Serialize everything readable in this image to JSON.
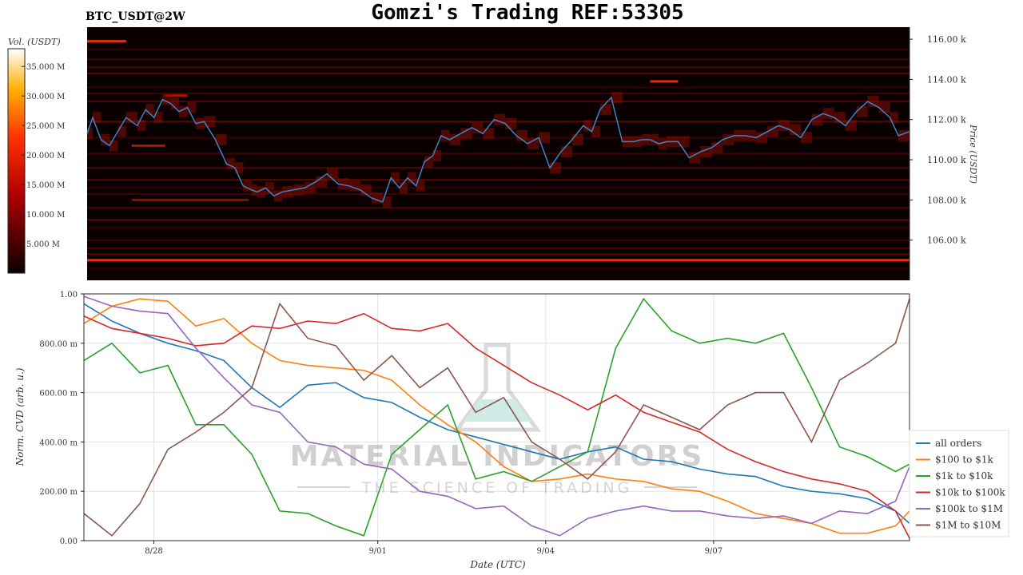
{
  "header": {
    "symbol": "BTC_USDT@2W",
    "title": "Gomzi's Trading REF:53305"
  },
  "watermark": {
    "brand": "MATERIAL INDICATORS",
    "tagline": "THE SCIENCE OF TRADING"
  },
  "colors": {
    "price_line": "#3a86c8",
    "heatmap_bg": "#0a0000",
    "all_orders": "#1f77b4",
    "s100_1k": "#ff7f0e",
    "s1k_10k": "#2ca02c",
    "s10k_100k": "#d62728",
    "s100k_1m": "#9467bd",
    "s1m_10m": "#8c564b"
  },
  "chart_data": [
    {
      "type": "heatmap",
      "title": "BTC_USDT@2W",
      "colorbar": {
        "label": "Vol. (USDT)",
        "ticks": [
          "35.000 M",
          "30.000 M",
          "25.000 M",
          "20.000 M",
          "15.000 M",
          "10.000 M",
          "5.000 M"
        ],
        "tick_values": [
          35,
          30,
          25,
          20,
          15,
          10,
          5
        ],
        "range": [
          0,
          38
        ],
        "units": "M USDT",
        "colormap": "hot"
      },
      "ylabel": "Price (USDT)",
      "ylim": [
        104.0,
        116.6
      ],
      "y_units": "k USDT",
      "yticks": [
        "116.00 k",
        "114.00 k",
        "112.00 k",
        "110.00 k",
        "108.00 k",
        "106.00 k"
      ],
      "ytick_values": [
        116,
        114,
        112,
        110,
        108,
        106
      ],
      "xlim": [
        0,
        14.75
      ],
      "x_units": "days since 8/27 00:00 UTC",
      "strong_levels": [
        {
          "price": 105.0,
          "x_start": 0,
          "x_end": 14.75,
          "intensity": 0.9
        },
        {
          "price": 115.9,
          "x_start": 0,
          "x_end": 0.7,
          "intensity": 0.85
        },
        {
          "price": 113.9,
          "x_start": 10.1,
          "x_end": 10.6,
          "intensity": 0.85
        },
        {
          "price": 110.7,
          "x_start": 0.8,
          "x_end": 1.4,
          "intensity": 0.75
        },
        {
          "price": 113.2,
          "x_start": 1.4,
          "x_end": 1.8,
          "intensity": 0.7
        },
        {
          "price": 108.0,
          "x_start": 0.8,
          "x_end": 2.9,
          "intensity": 0.6
        }
      ],
      "band_levels": [
        115.5,
        115.0,
        114.6,
        114.3,
        113.6,
        113.3,
        112.9,
        111.9,
        111.1,
        110.3,
        109.6,
        109.0,
        108.6,
        108.3,
        107.6,
        107.0,
        106.6,
        106.0,
        105.6,
        105.3,
        104.6
      ],
      "price_series": {
        "name": "BTC price",
        "x": [
          0,
          0.1,
          0.25,
          0.4,
          0.55,
          0.7,
          0.9,
          1.05,
          1.2,
          1.35,
          1.5,
          1.65,
          1.8,
          1.95,
          2.1,
          2.3,
          2.5,
          2.65,
          2.8,
          2.95,
          3.05,
          3.2,
          3.35,
          3.5,
          3.7,
          3.9,
          4.1,
          4.3,
          4.5,
          4.7,
          4.9,
          5.1,
          5.3,
          5.45,
          5.6,
          5.75,
          5.9,
          6.05,
          6.2,
          6.35,
          6.5,
          6.7,
          6.9,
          7.1,
          7.3,
          7.5,
          7.7,
          7.9,
          8.1,
          8.3,
          8.5,
          8.7,
          8.9,
          9.05,
          9.2,
          9.4,
          9.6,
          9.8,
          9.95,
          10.1,
          10.25,
          10.4,
          10.6,
          10.8,
          11.0,
          11.2,
          11.4,
          11.6,
          11.8,
          12.0,
          12.2,
          12.4,
          12.6,
          12.8,
          13.0,
          13.2,
          13.4,
          13.6,
          13.8,
          14.0,
          14.2,
          14.4,
          14.55,
          14.75
        ],
        "y": [
          111.3,
          112.1,
          111.0,
          110.7,
          111.4,
          112.1,
          111.7,
          112.5,
          112.1,
          113.0,
          112.8,
          112.4,
          112.6,
          111.8,
          111.9,
          111.0,
          109.8,
          109.6,
          108.7,
          108.5,
          108.4,
          108.6,
          108.2,
          108.4,
          108.5,
          108.6,
          108.9,
          109.3,
          108.8,
          108.7,
          108.5,
          108.1,
          107.9,
          109.1,
          108.6,
          109.1,
          108.7,
          109.9,
          110.2,
          111.2,
          111.0,
          111.3,
          111.6,
          111.3,
          112.0,
          111.8,
          111.2,
          110.8,
          111.1,
          109.6,
          110.4,
          111.0,
          111.7,
          111.4,
          112.5,
          113.1,
          110.9,
          110.9,
          111.0,
          111.0,
          110.8,
          110.9,
          110.9,
          110.1,
          110.4,
          110.6,
          111.0,
          111.2,
          111.2,
          111.1,
          111.4,
          111.7,
          111.5,
          111.1,
          112.0,
          112.3,
          112.1,
          111.7,
          112.4,
          112.9,
          112.6,
          112.1,
          111.2,
          111.4
        ]
      }
    },
    {
      "type": "line",
      "title": "",
      "xlabel": "Date (UTC)",
      "ylabel": "Norm. CVD (arb. u.)",
      "ylim": [
        0,
        1
      ],
      "yticks": [
        "1.00",
        "800.00 m",
        "600.00 m",
        "400.00 m",
        "200.00 m",
        "0.00"
      ],
      "ytick_values": [
        1.0,
        0.8,
        0.6,
        0.4,
        0.2,
        0.0
      ],
      "xlim": [
        0,
        14.75
      ],
      "x_units": "days since 8/27 00:00 UTC",
      "xticks": [
        "8/28",
        "9/01",
        "9/04",
        "9/07"
      ],
      "xtick_values": [
        1.25,
        5.25,
        8.25,
        11.25
      ],
      "grid": true,
      "legend_position": "bottom-right",
      "x": [
        0,
        0.5,
        1,
        1.5,
        2,
        2.5,
        3,
        3.5,
        4,
        4.5,
        5,
        5.5,
        6,
        6.5,
        7,
        7.5,
        8,
        8.5,
        9,
        9.5,
        10,
        10.5,
        11,
        11.5,
        12,
        12.5,
        13,
        13.5,
        14,
        14.5,
        14.75
      ],
      "series": [
        {
          "name": "all orders",
          "color": "#1f77b4",
          "values": [
            0.96,
            0.89,
            0.84,
            0.8,
            0.77,
            0.73,
            0.62,
            0.54,
            0.63,
            0.64,
            0.58,
            0.56,
            0.5,
            0.45,
            0.42,
            0.39,
            0.36,
            0.33,
            0.36,
            0.38,
            0.33,
            0.32,
            0.29,
            0.27,
            0.26,
            0.22,
            0.2,
            0.19,
            0.17,
            0.12,
            0.07
          ]
        },
        {
          "name": "$100 to $1k",
          "color": "#ff7f0e",
          "values": [
            0.88,
            0.95,
            0.98,
            0.97,
            0.87,
            0.9,
            0.8,
            0.73,
            0.71,
            0.7,
            0.69,
            0.65,
            0.55,
            0.47,
            0.4,
            0.3,
            0.24,
            0.25,
            0.27,
            0.25,
            0.24,
            0.21,
            0.2,
            0.16,
            0.11,
            0.09,
            0.07,
            0.03,
            0.03,
            0.06,
            0.12
          ]
        },
        {
          "name": "$1k to $10k",
          "color": "#2ca02c",
          "values": [
            0.73,
            0.8,
            0.68,
            0.71,
            0.47,
            0.47,
            0.35,
            0.12,
            0.11,
            0.06,
            0.02,
            0.35,
            0.45,
            0.55,
            0.25,
            0.28,
            0.24,
            0.3,
            0.36,
            0.78,
            0.98,
            0.85,
            0.8,
            0.82,
            0.8,
            0.84,
            0.62,
            0.38,
            0.34,
            0.28,
            0.31
          ]
        },
        {
          "name": "$10k to $100k",
          "color": "#d62728",
          "values": [
            0.91,
            0.86,
            0.84,
            0.82,
            0.79,
            0.8,
            0.87,
            0.86,
            0.89,
            0.88,
            0.92,
            0.86,
            0.85,
            0.88,
            0.78,
            0.71,
            0.64,
            0.59,
            0.53,
            0.59,
            0.52,
            0.48,
            0.44,
            0.37,
            0.32,
            0.28,
            0.25,
            0.23,
            0.2,
            0.12,
            0.01
          ]
        },
        {
          "name": "$100k to $1M",
          "color": "#9467bd",
          "values": [
            0.99,
            0.95,
            0.93,
            0.92,
            0.78,
            0.66,
            0.55,
            0.52,
            0.4,
            0.38,
            0.31,
            0.29,
            0.2,
            0.18,
            0.13,
            0.14,
            0.06,
            0.02,
            0.09,
            0.12,
            0.14,
            0.12,
            0.12,
            0.1,
            0.09,
            0.1,
            0.07,
            0.12,
            0.11,
            0.16,
            0.3
          ]
        },
        {
          "name": "$1M to $10M",
          "color": "#8c564b",
          "values": [
            0.11,
            0.02,
            0.15,
            0.37,
            0.44,
            0.52,
            0.62,
            0.96,
            0.82,
            0.79,
            0.65,
            0.75,
            0.62,
            0.7,
            0.52,
            0.58,
            0.4,
            0.33,
            0.25,
            0.36,
            0.55,
            0.5,
            0.45,
            0.55,
            0.6,
            0.6,
            0.4,
            0.65,
            0.72,
            0.8,
            0.98
          ]
        }
      ]
    }
  ]
}
